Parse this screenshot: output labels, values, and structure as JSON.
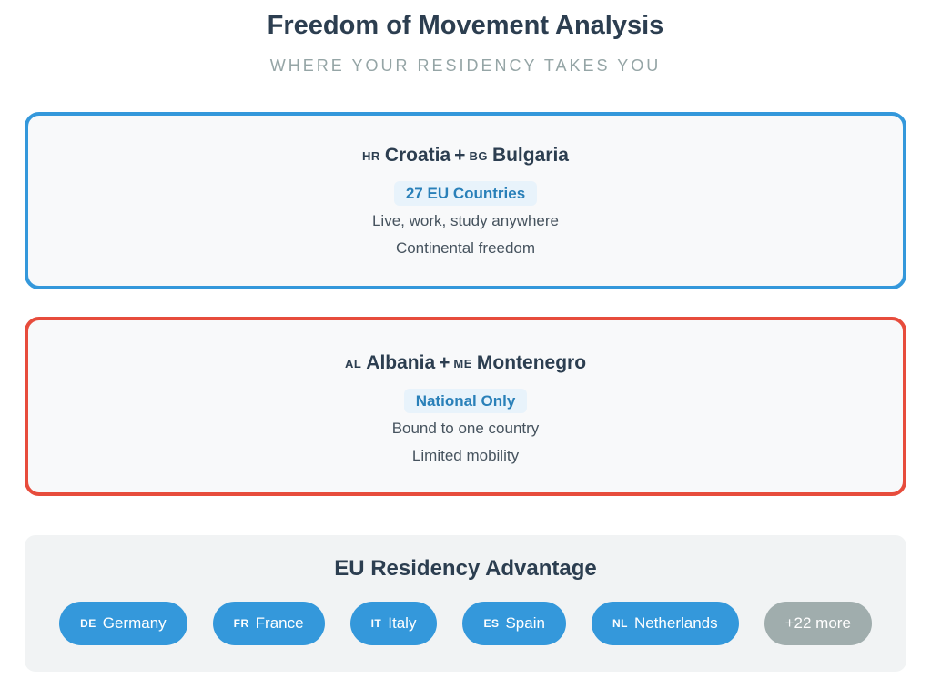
{
  "header": {
    "title": "Freedom of Movement Analysis",
    "subtitle": "WHERE YOUR RESIDENCY TAKES YOU"
  },
  "cards": [
    {
      "id": "eu",
      "accent": "#3498db",
      "parts": [
        {
          "code": "HR",
          "name": "Croatia"
        },
        {
          "code": "BG",
          "name": "Bulgaria"
        }
      ],
      "joiner": "+",
      "badge": "27 EU Countries",
      "line1": "Live, work, study anywhere",
      "line2": "Continental freedom"
    },
    {
      "id": "national",
      "accent": "#e74c3c",
      "parts": [
        {
          "code": "AL",
          "name": "Albania"
        },
        {
          "code": "ME",
          "name": "Montenegro"
        }
      ],
      "joiner": "+",
      "badge": "National Only",
      "line1": "Bound to one country",
      "line2": "Limited mobility"
    }
  ],
  "advantage": {
    "title": "EU Residency Advantage",
    "pills": [
      {
        "code": "DE",
        "label": "Germany"
      },
      {
        "code": "FR",
        "label": "France"
      },
      {
        "code": "IT",
        "label": "Italy"
      },
      {
        "code": "ES",
        "label": "Spain"
      },
      {
        "code": "NL",
        "label": "Netherlands"
      },
      {
        "label": "+22 more",
        "muted": true
      }
    ]
  },
  "colors": {
    "eu_accent": "#3498db",
    "national_accent": "#e74c3c",
    "badge_bg": "#e8f3fb",
    "badge_text": "#2980b9",
    "pill_blue": "#3498db",
    "pill_gray": "#a0adad",
    "heading_text": "#2c3e50",
    "subtitle_text": "#95a5a6"
  }
}
